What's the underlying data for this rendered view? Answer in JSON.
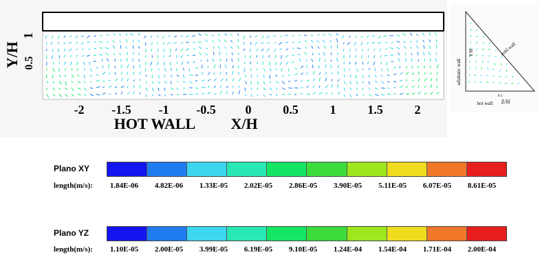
{
  "main_plot": {
    "y_axis_label": "Y/H",
    "y_ticks": [
      "1",
      "0.5"
    ],
    "x_ticks": [
      "-2",
      "-1.5",
      "-1",
      "-0.5",
      "0",
      "0.5",
      "1",
      "1.5",
      "2"
    ],
    "x_label_prefix": "HOT WALL",
    "x_axis_label": "X/H"
  },
  "inset_plot": {
    "cold_wall_label": "cold wall",
    "adiabatic_wall_label": "adiabatic wall",
    "y_axis_label": "Y/H",
    "hot_wall_label": "hot wall",
    "z_axis_label": "Z/H",
    "tick_label": "0.5"
  },
  "legend_xy": {
    "title": "Plano XY",
    "length_label": "length(m/s):",
    "colors": [
      "#1414f0",
      "#1e7cf0",
      "#3cd6f0",
      "#28e8b4",
      "#14e664",
      "#3cdc3c",
      "#9ee61e",
      "#f0dc1e",
      "#f07828",
      "#e61e1e"
    ],
    "ticks": [
      "1.84E-06",
      "4.82E-06",
      "1.33E-05",
      "2.02E-05",
      "2.86E-05",
      "3.90E-05",
      "5.11E-05",
      "6.07E-05",
      "8.61E-05"
    ]
  },
  "legend_yz": {
    "title": "Plano YZ",
    "length_label": "length(m/s):",
    "colors": [
      "#1414f0",
      "#1e7cf0",
      "#3cd6f0",
      "#28e8b4",
      "#14e664",
      "#3cdc3c",
      "#9ee61e",
      "#f0dc1e",
      "#f07828",
      "#e61e1e"
    ],
    "ticks": [
      "1.10E-05",
      "2.00E-05",
      "3.99E-05",
      "6.19E-05",
      "9.10E-05",
      "1.24E-04",
      "1.54E-04",
      "1.71E-04",
      "2.00E-04"
    ]
  }
}
